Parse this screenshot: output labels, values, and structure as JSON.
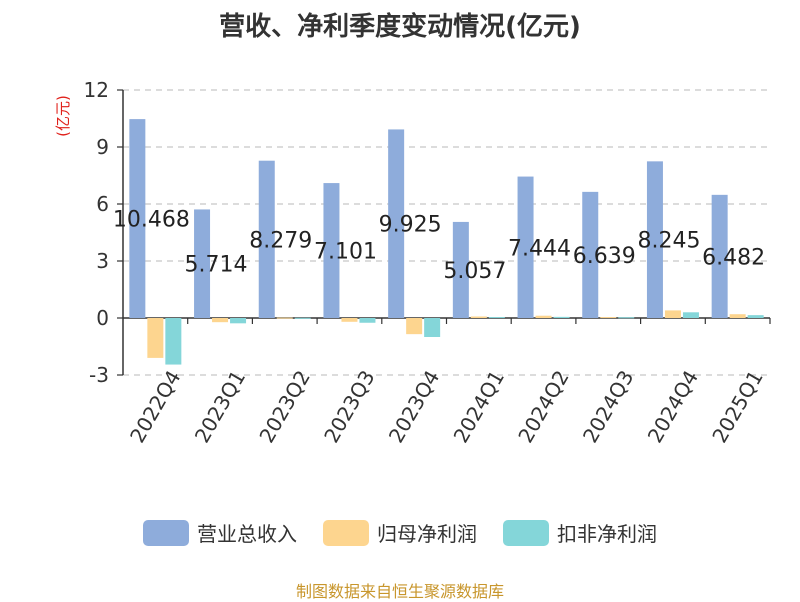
{
  "chart_data": {
    "type": "bar",
    "title": "营收、净利季度变动情况(亿元)",
    "ylabel": "(亿元)",
    "xlabel": "",
    "ylim": [
      -3,
      12
    ],
    "yticks": [
      -3,
      0,
      3,
      6,
      9,
      12
    ],
    "grid": true,
    "legend_position": "bottom",
    "categories": [
      "2022Q4",
      "2023Q1",
      "2023Q2",
      "2023Q3",
      "2023Q4",
      "2024Q1",
      "2024Q2",
      "2024Q3",
      "2024Q4",
      "2025Q1"
    ],
    "series": [
      {
        "name": "营业总收入",
        "color": "#8eacdb",
        "values": [
          10.468,
          5.714,
          8.279,
          7.101,
          9.925,
          5.057,
          7.444,
          6.639,
          8.245,
          6.482
        ]
      },
      {
        "name": "归母净利润",
        "color": "#fdd58f",
        "values": [
          -2.1,
          -0.22,
          0.02,
          -0.2,
          -0.85,
          0.08,
          0.12,
          0.05,
          0.4,
          0.2
        ]
      },
      {
        "name": "扣非净利润",
        "color": "#84d6d9",
        "values": [
          -2.45,
          -0.28,
          0.01,
          -0.25,
          -1.0,
          0.05,
          0.06,
          0.04,
          0.3,
          0.15
        ]
      }
    ],
    "data_labels": [
      "10.468",
      "5.714",
      "8.279",
      "7.101",
      "9.925",
      "5.057",
      "7.444",
      "6.639",
      "8.245",
      "6.482"
    ]
  },
  "source_note": "制图数据来自恒生聚源数据库"
}
